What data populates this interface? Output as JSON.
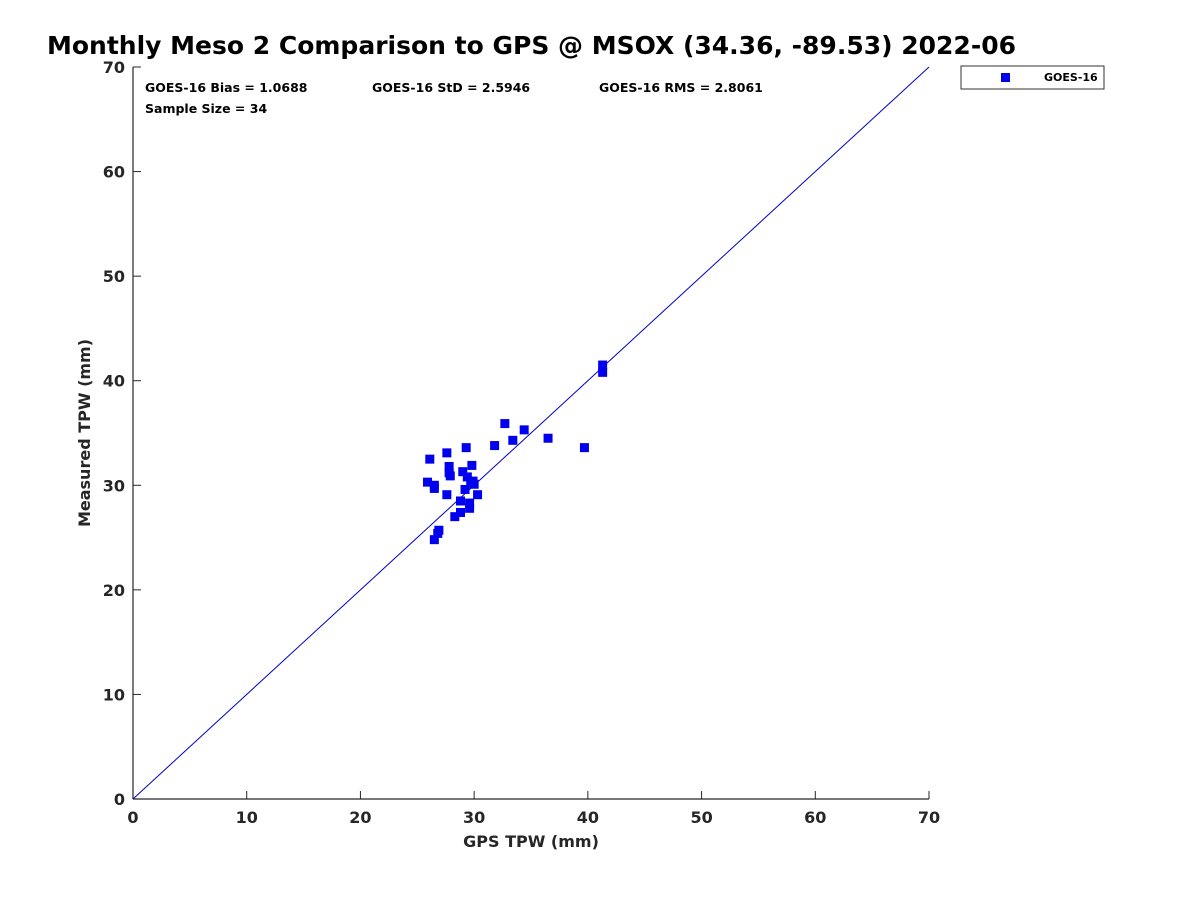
{
  "chart_data": {
    "type": "scatter",
    "title": "Monthly Meso 2 Comparison to GPS @ MSOX (34.36, -89.53) 2022-06",
    "xlabel": "GPS TPW (mm)",
    "ylabel": "Measured TPW (mm)",
    "xlim": [
      0,
      70
    ],
    "ylim": [
      0,
      70
    ],
    "xticks": [
      0,
      10,
      20,
      30,
      40,
      50,
      60,
      70
    ],
    "yticks": [
      0,
      10,
      20,
      30,
      40,
      50,
      60,
      70
    ],
    "grid": false,
    "legend_placement": "outside-top-right",
    "reference_line": {
      "type": "identity",
      "from": [
        0,
        0
      ],
      "to": [
        70,
        70
      ],
      "color": "#0000cc"
    },
    "stats": [
      {
        "id": "bias",
        "text": "GOES-16 Bias = 1.0688"
      },
      {
        "id": "std",
        "text": "GOES-16 StD = 2.5946"
      },
      {
        "id": "rms",
        "text": "GOES-16 RMS = 2.8061"
      },
      {
        "id": "sample",
        "text": "Sample Size = 34"
      }
    ],
    "series": [
      {
        "name": "GOES-16",
        "color": "#0000ee",
        "marker": "square",
        "points": [
          [
            26.1,
            32.5
          ],
          [
            27.6,
            33.1
          ],
          [
            29.3,
            33.6
          ],
          [
            25.9,
            30.3
          ],
          [
            26.5,
            30.0
          ],
          [
            26.5,
            29.7
          ],
          [
            27.8,
            31.8
          ],
          [
            27.8,
            31.2
          ],
          [
            27.9,
            30.9
          ],
          [
            29.0,
            31.3
          ],
          [
            29.4,
            30.8
          ],
          [
            29.7,
            30.3
          ],
          [
            29.9,
            30.4
          ],
          [
            29.8,
            31.9
          ],
          [
            29.2,
            29.6
          ],
          [
            27.6,
            29.1
          ],
          [
            30.3,
            29.1
          ],
          [
            28.8,
            28.5
          ],
          [
            29.6,
            28.3
          ],
          [
            29.6,
            27.8
          ],
          [
            28.8,
            27.4
          ],
          [
            28.3,
            27.0
          ],
          [
            26.9,
            25.7
          ],
          [
            26.8,
            25.4
          ],
          [
            26.5,
            24.8
          ],
          [
            31.8,
            33.8
          ],
          [
            32.7,
            35.9
          ],
          [
            33.4,
            34.3
          ],
          [
            34.4,
            35.3
          ],
          [
            36.5,
            34.5
          ],
          [
            39.7,
            33.6
          ],
          [
            41.3,
            41.5
          ],
          [
            41.3,
            40.8
          ],
          [
            30.0,
            30.1
          ]
        ]
      }
    ]
  }
}
